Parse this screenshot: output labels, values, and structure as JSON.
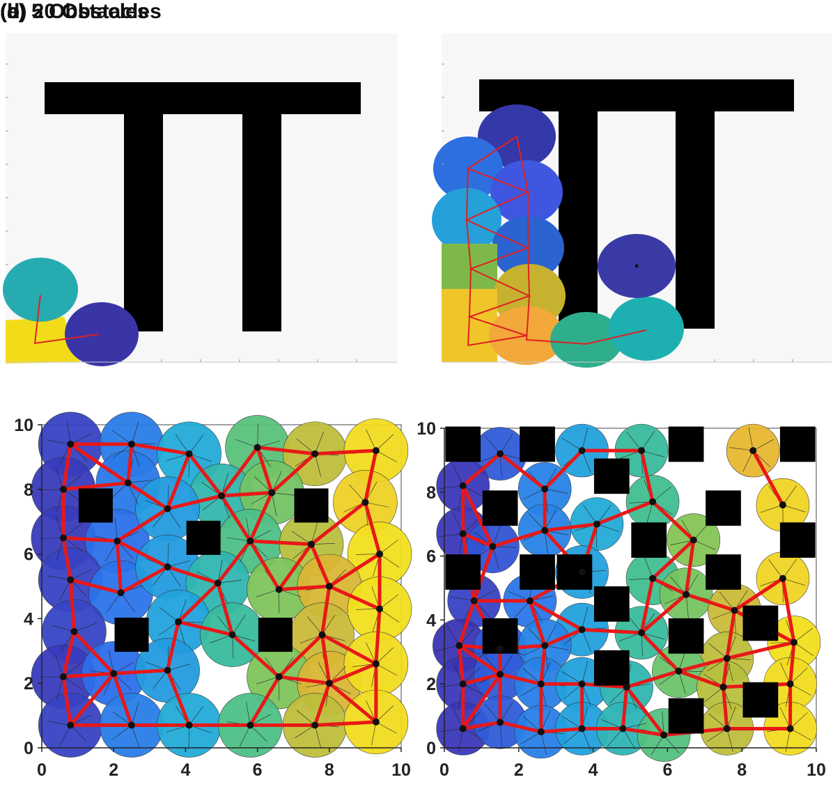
{
  "chart_data": [
    {
      "type": "scatter",
      "title": "(a)",
      "series": [],
      "obstacles": "T-shaped double-leg obstacle"
    },
    {
      "type": "scatter",
      "title": "(b)",
      "series": []
    },
    {
      "type": "scatter",
      "title": "(c) 5 Obstacles",
      "xlim": [
        0,
        10
      ],
      "ylim": [
        0,
        10
      ],
      "xticks": [
        "0",
        "2",
        "4",
        "6",
        "8",
        "10"
      ],
      "yticks": [
        "0",
        "2",
        "4",
        "6",
        "8",
        "10"
      ],
      "obstacles": [
        [
          1.5,
          7.5
        ],
        [
          4.5,
          6.5
        ],
        [
          7.5,
          7.5
        ],
        [
          2.5,
          3.5
        ],
        [
          6.5,
          3.5
        ]
      ],
      "nodes": [
        [
          0.8,
          9.4
        ],
        [
          2.5,
          9.4
        ],
        [
          4.1,
          9.1
        ],
        [
          6.0,
          9.3
        ],
        [
          7.6,
          9.1
        ],
        [
          9.3,
          9.2
        ],
        [
          0.6,
          8.0
        ],
        [
          2.4,
          8.2
        ],
        [
          5.0,
          7.8
        ],
        [
          6.4,
          7.9
        ],
        [
          9.0,
          7.6
        ],
        [
          0.6,
          6.5
        ],
        [
          2.1,
          6.4
        ],
        [
          3.5,
          7.4
        ],
        [
          5.8,
          6.4
        ],
        [
          7.5,
          6.3
        ],
        [
          9.4,
          6.0
        ],
        [
          0.8,
          5.2
        ],
        [
          2.2,
          4.8
        ],
        [
          3.5,
          5.6
        ],
        [
          4.9,
          5.1
        ],
        [
          6.6,
          4.9
        ],
        [
          8.0,
          5.0
        ],
        [
          0.9,
          3.6
        ],
        [
          3.8,
          3.9
        ],
        [
          5.3,
          3.5
        ],
        [
          7.8,
          3.5
        ],
        [
          9.4,
          4.3
        ],
        [
          0.6,
          2.2
        ],
        [
          2.0,
          2.3
        ],
        [
          3.5,
          2.4
        ],
        [
          6.6,
          2.2
        ],
        [
          8.0,
          2.0
        ],
        [
          9.3,
          2.6
        ],
        [
          0.8,
          0.7
        ],
        [
          2.5,
          0.7
        ],
        [
          4.1,
          0.7
        ],
        [
          5.8,
          0.7
        ],
        [
          7.6,
          0.7
        ],
        [
          9.3,
          0.8
        ]
      ]
    },
    {
      "type": "scatter",
      "title": "(d) 20 Obstacles",
      "xlim": [
        0,
        10
      ],
      "ylim": [
        0,
        10
      ],
      "xticks": [
        "0",
        "2",
        "4",
        "6",
        "8",
        "10"
      ],
      "yticks": [
        "0",
        "2",
        "4",
        "6",
        "8",
        "10"
      ],
      "obstacles": [
        [
          0.5,
          9.5
        ],
        [
          2.5,
          9.5
        ],
        [
          6.5,
          9.5
        ],
        [
          9.5,
          9.5
        ],
        [
          4.5,
          8.5
        ],
        [
          1.5,
          7.5
        ],
        [
          7.5,
          7.5
        ],
        [
          9.5,
          6.5
        ],
        [
          2.5,
          5.5
        ],
        [
          5.5,
          6.5
        ],
        [
          0.5,
          5.5
        ],
        [
          7.5,
          5.5
        ],
        [
          4.5,
          4.5
        ],
        [
          8.5,
          3.9
        ],
        [
          1.5,
          3.5
        ],
        [
          6.5,
          3.5
        ],
        [
          4.5,
          2.5
        ],
        [
          8.5,
          1.5
        ],
        [
          6.5,
          1.0
        ],
        [
          3.5,
          5.5
        ]
      ],
      "nodes": [
        [
          1.5,
          9.2
        ],
        [
          3.7,
          9.3
        ],
        [
          5.3,
          9.3
        ],
        [
          8.3,
          9.3
        ],
        [
          0.5,
          8.2
        ],
        [
          2.7,
          8.1
        ],
        [
          5.6,
          7.7
        ],
        [
          9.1,
          7.6
        ],
        [
          0.5,
          6.7
        ],
        [
          1.3,
          6.3
        ],
        [
          2.7,
          6.8
        ],
        [
          4.1,
          7.0
        ],
        [
          6.7,
          6.5
        ],
        [
          3.7,
          5.5
        ],
        [
          5.6,
          5.3
        ],
        [
          9.1,
          5.3
        ],
        [
          0.8,
          4.6
        ],
        [
          2.3,
          4.6
        ],
        [
          6.5,
          4.8
        ],
        [
          7.8,
          4.3
        ],
        [
          3.7,
          3.7
        ],
        [
          5.3,
          3.6
        ],
        [
          0.4,
          3.2
        ],
        [
          1.5,
          3.1
        ],
        [
          2.7,
          3.2
        ],
        [
          7.6,
          2.8
        ],
        [
          9.4,
          3.3
        ],
        [
          0.5,
          2.0
        ],
        [
          1.5,
          2.3
        ],
        [
          2.6,
          2.0
        ],
        [
          3.7,
          2.0
        ],
        [
          4.9,
          1.9
        ],
        [
          6.3,
          2.4
        ],
        [
          7.5,
          1.9
        ],
        [
          9.3,
          2.0
        ],
        [
          0.5,
          0.6
        ],
        [
          1.5,
          0.8
        ],
        [
          2.6,
          0.5
        ],
        [
          3.7,
          0.6
        ],
        [
          4.8,
          0.6
        ],
        [
          5.9,
          0.4
        ],
        [
          7.6,
          0.6
        ],
        [
          9.3,
          0.6
        ]
      ]
    }
  ]
}
